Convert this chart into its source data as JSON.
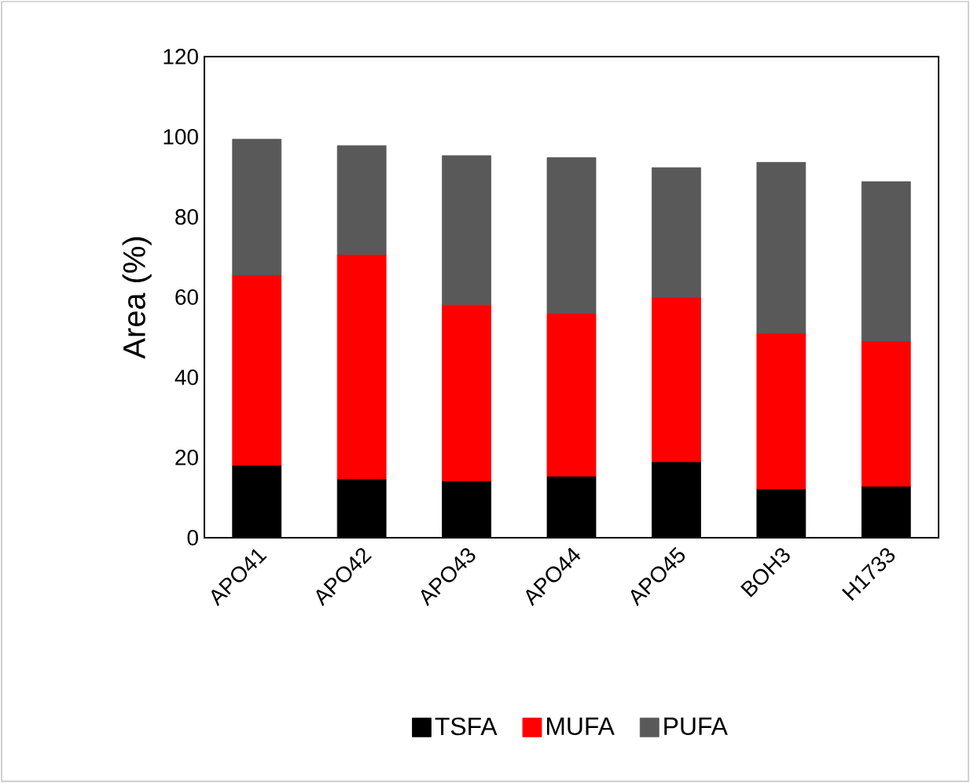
{
  "chart_data": {
    "type": "bar",
    "stacked": true,
    "ylabel": "Area (%)",
    "categories": [
      "APO41",
      "APO42",
      "APO43",
      "APO44",
      "APO45",
      "BOH3",
      "H1733"
    ],
    "series": [
      {
        "name": "TSFA",
        "color": "#000000",
        "values": [
          17.9,
          14.5,
          14.0,
          15.2,
          18.8,
          12.0,
          12.7
        ]
      },
      {
        "name": "MUFA",
        "color": "#ff0000",
        "values": [
          47.5,
          56.0,
          44.0,
          40.6,
          41.0,
          38.9,
          36.2
        ]
      },
      {
        "name": "PUFA",
        "color": "#595959",
        "values": [
          34.0,
          27.3,
          37.3,
          39.0,
          32.5,
          42.7,
          39.9
        ]
      }
    ],
    "ylim": [
      0,
      120
    ],
    "yticks": [
      0,
      20,
      40,
      60,
      80,
      100,
      120
    ],
    "grid": false,
    "legend": "bottom"
  }
}
